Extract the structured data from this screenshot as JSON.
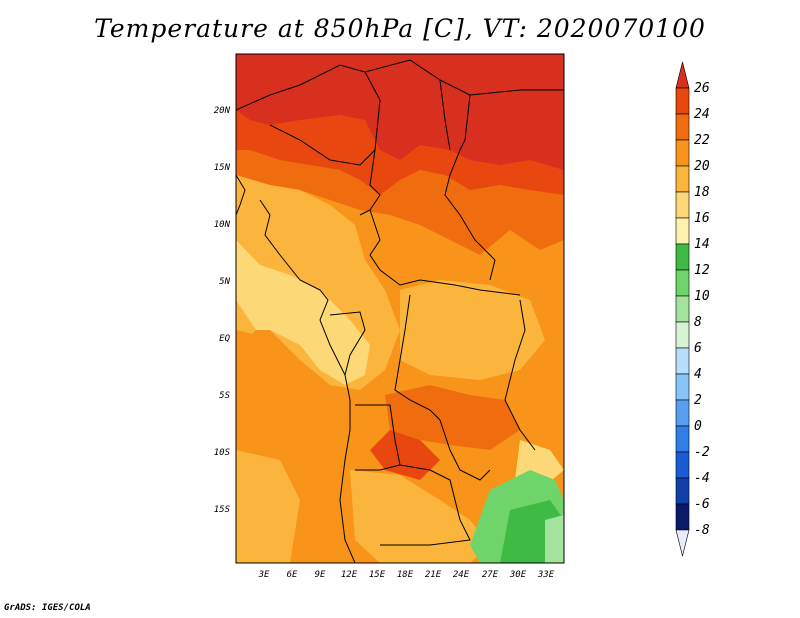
{
  "title": "Temperature at 850hPa [C], VT: 2020070100",
  "footer": "GrADS: IGES/COLA",
  "map": {
    "lat_labels": [
      "20N",
      "15N",
      "10N",
      "5N",
      "EQ",
      "5S",
      "10S",
      "15S"
    ],
    "lon_labels": [
      "3E",
      "6E",
      "9E",
      "12E",
      "15E",
      "18E",
      "21E",
      "24E",
      "27E",
      "30E",
      "33E"
    ]
  },
  "colorbar": {
    "labels": [
      "26",
      "24",
      "22",
      "20",
      "18",
      "16",
      "14",
      "12",
      "10",
      "8",
      "6",
      "4",
      "2",
      "0",
      "-2",
      "-4",
      "-6",
      "-8"
    ],
    "colors": [
      "#d7301f",
      "#e8470f",
      "#f06d0f",
      "#f79419",
      "#fbb53c",
      "#fdd876",
      "#fff2ad",
      "#3fbb45",
      "#6fd56a",
      "#a4e39d",
      "#d6f3d6",
      "#b9defb",
      "#88c5f7",
      "#579ff1",
      "#307ee8",
      "#1a5cd3",
      "#1240a8",
      "#091a6b",
      "#e9e9ff"
    ]
  }
}
